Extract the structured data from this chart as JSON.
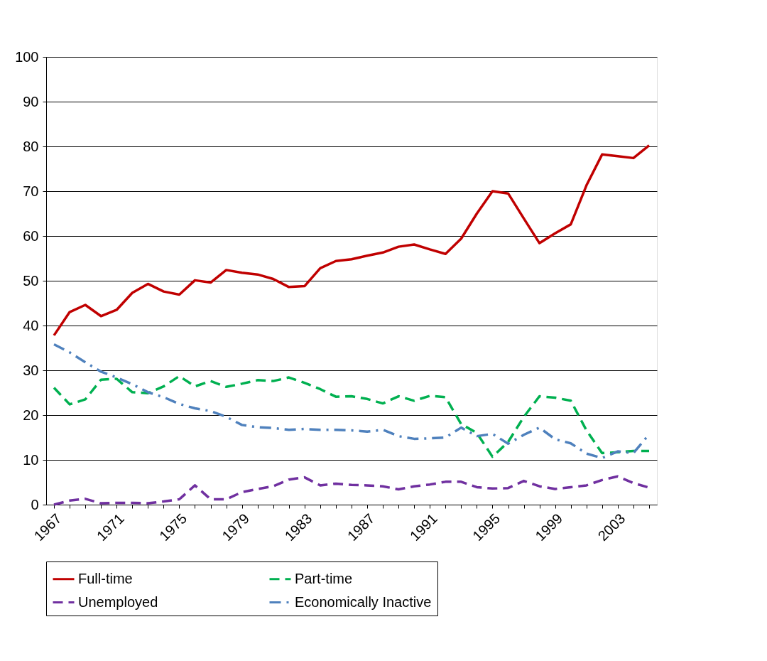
{
  "chart_data": {
    "type": "line",
    "categories": [
      "1967",
      null,
      null,
      null,
      "1971",
      null,
      null,
      null,
      "1975",
      null,
      null,
      null,
      "1979",
      null,
      null,
      null,
      "1983",
      null,
      null,
      null,
      "1987",
      null,
      null,
      null,
      "1991",
      null,
      null,
      null,
      "1995",
      null,
      null,
      null,
      "1999",
      null,
      null,
      null,
      "2003",
      null,
      null
    ],
    "series": [
      {
        "name": "Full-time",
        "color": "#c00000",
        "line_style": "solid",
        "values": [
          37.8,
          43.0,
          44.6,
          42.1,
          43.5,
          47.3,
          49.3,
          47.6,
          46.9,
          50.1,
          49.6,
          52.4,
          51.8,
          51.4,
          50.4,
          48.6,
          48.8,
          52.8,
          54.4,
          54.8,
          55.6,
          56.3,
          57.6,
          58.1,
          57.0,
          56.0,
          59.4,
          65.0,
          70.0,
          69.5,
          63.9,
          58.4,
          60.6,
          62.6,
          71.3,
          78.2,
          77.8,
          77.4,
          80.2
        ]
      },
      {
        "name": "Part-time",
        "color": "#00b050",
        "line_style": "dashed",
        "values": [
          26.1,
          22.4,
          23.5,
          27.9,
          28.1,
          25.1,
          24.9,
          26.4,
          28.7,
          26.4,
          27.6,
          26.3,
          27.0,
          27.8,
          27.6,
          28.4,
          27.2,
          25.8,
          24.1,
          24.2,
          23.6,
          22.6,
          24.2,
          23.2,
          24.3,
          24.0,
          18.0,
          16.0,
          10.7,
          14.0,
          19.6,
          24.2,
          23.9,
          23.2,
          16.6,
          11.5,
          11.7,
          12.0,
          12.0
        ]
      },
      {
        "name": "Unemployed",
        "color": "#7030a0",
        "line_style": "dashed",
        "values": [
          0.0,
          0.9,
          1.3,
          0.3,
          0.4,
          0.4,
          0.3,
          0.7,
          1.2,
          4.3,
          1.2,
          1.2,
          2.8,
          3.5,
          4.1,
          5.6,
          6.1,
          4.3,
          4.7,
          4.4,
          4.3,
          4.1,
          3.4,
          4.1,
          4.5,
          5.1,
          5.1,
          3.9,
          3.6,
          3.7,
          5.3,
          4.1,
          3.5,
          3.9,
          4.3,
          5.5,
          6.3,
          4.8,
          3.8
        ]
      },
      {
        "name": "Economically Inactive",
        "color": "#4f81bd",
        "line_style": "dashdot",
        "values": [
          35.8,
          34.0,
          31.8,
          29.7,
          28.4,
          26.9,
          25.1,
          24.0,
          22.5,
          21.5,
          20.9,
          19.6,
          17.8,
          17.3,
          17.1,
          16.7,
          16.9,
          16.7,
          16.7,
          16.6,
          16.3,
          16.7,
          15.3,
          14.7,
          14.8,
          15.0,
          17.2,
          15.3,
          15.8,
          13.6,
          15.6,
          17.2,
          14.6,
          13.7,
          11.4,
          10.4,
          11.9,
          11.5,
          15.7
        ]
      }
    ],
    "ylim": [
      0,
      100
    ],
    "yticks": [
      0,
      10,
      20,
      30,
      40,
      50,
      60,
      70,
      80,
      90,
      100
    ],
    "grid": "y",
    "legend": "bottom"
  }
}
